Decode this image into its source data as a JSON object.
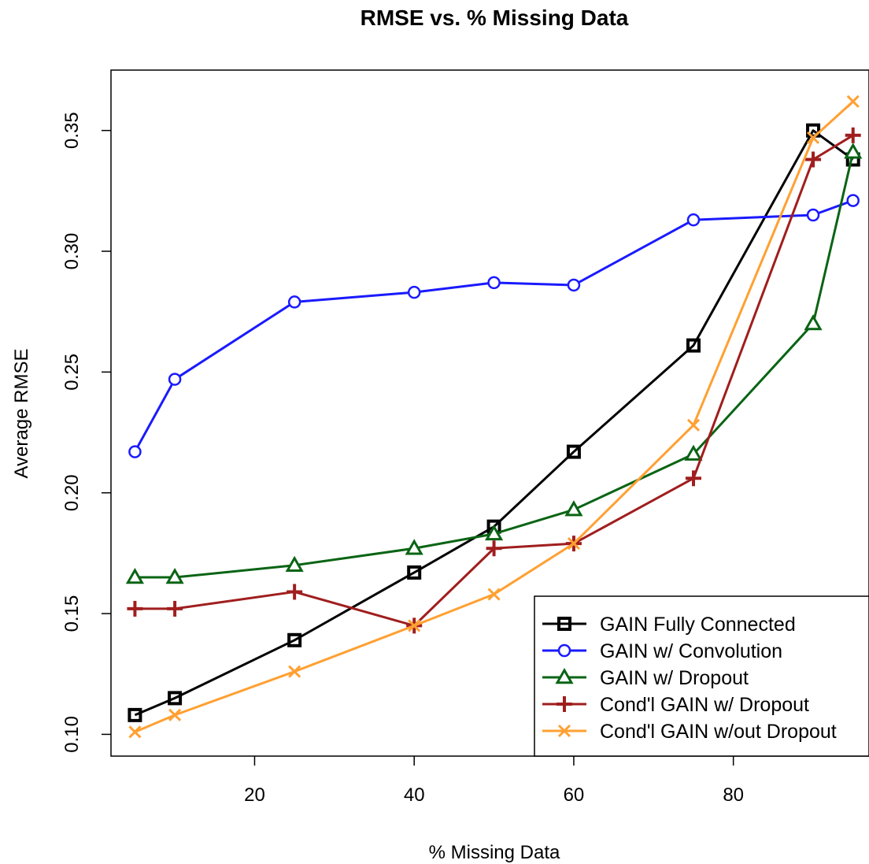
{
  "chart_data": {
    "type": "line",
    "title": "RMSE vs. % Missing Data",
    "xlabel": "% Missing Data",
    "ylabel": "Average RMSE",
    "xlim": [
      2,
      97
    ],
    "ylim": [
      0.091,
      0.375
    ],
    "xticks": [
      20,
      40,
      60,
      80
    ],
    "yticks": [
      0.1,
      0.15,
      0.2,
      0.25,
      0.3,
      0.35
    ],
    "ytick_labels": [
      "0.10",
      "0.15",
      "0.20",
      "0.25",
      "0.30",
      "0.35"
    ],
    "grid": false,
    "legend_position": "bottom-right",
    "x": [
      5,
      10,
      25,
      40,
      50,
      60,
      75,
      90,
      95
    ],
    "series": [
      {
        "name": "GAIN Fully Connected",
        "color": "#000000",
        "marker": "square",
        "values": [
          0.108,
          0.115,
          0.139,
          0.167,
          0.186,
          0.217,
          0.261,
          0.35,
          0.338
        ]
      },
      {
        "name": "GAIN w/ Convolution",
        "color": "#1a1aff",
        "marker": "circle",
        "values": [
          0.217,
          0.247,
          0.279,
          0.283,
          0.287,
          0.286,
          0.313,
          0.315,
          0.321
        ]
      },
      {
        "name": "GAIN w/ Dropout",
        "color": "#0a6414",
        "marker": "triangle",
        "values": [
          0.165,
          0.165,
          0.17,
          0.177,
          0.183,
          0.193,
          0.216,
          0.27,
          0.341
        ]
      },
      {
        "name": "Cond'l GAIN w/ Dropout",
        "color": "#a01e1e",
        "marker": "plus",
        "values": [
          0.152,
          0.152,
          0.159,
          0.145,
          0.177,
          0.179,
          0.206,
          0.338,
          0.348
        ]
      },
      {
        "name": "Cond'l GAIN w/out Dropout",
        "color": "#ffa032",
        "marker": "cross",
        "values": [
          0.101,
          0.108,
          0.126,
          0.145,
          0.158,
          0.179,
          0.228,
          0.347,
          0.362
        ]
      }
    ]
  }
}
